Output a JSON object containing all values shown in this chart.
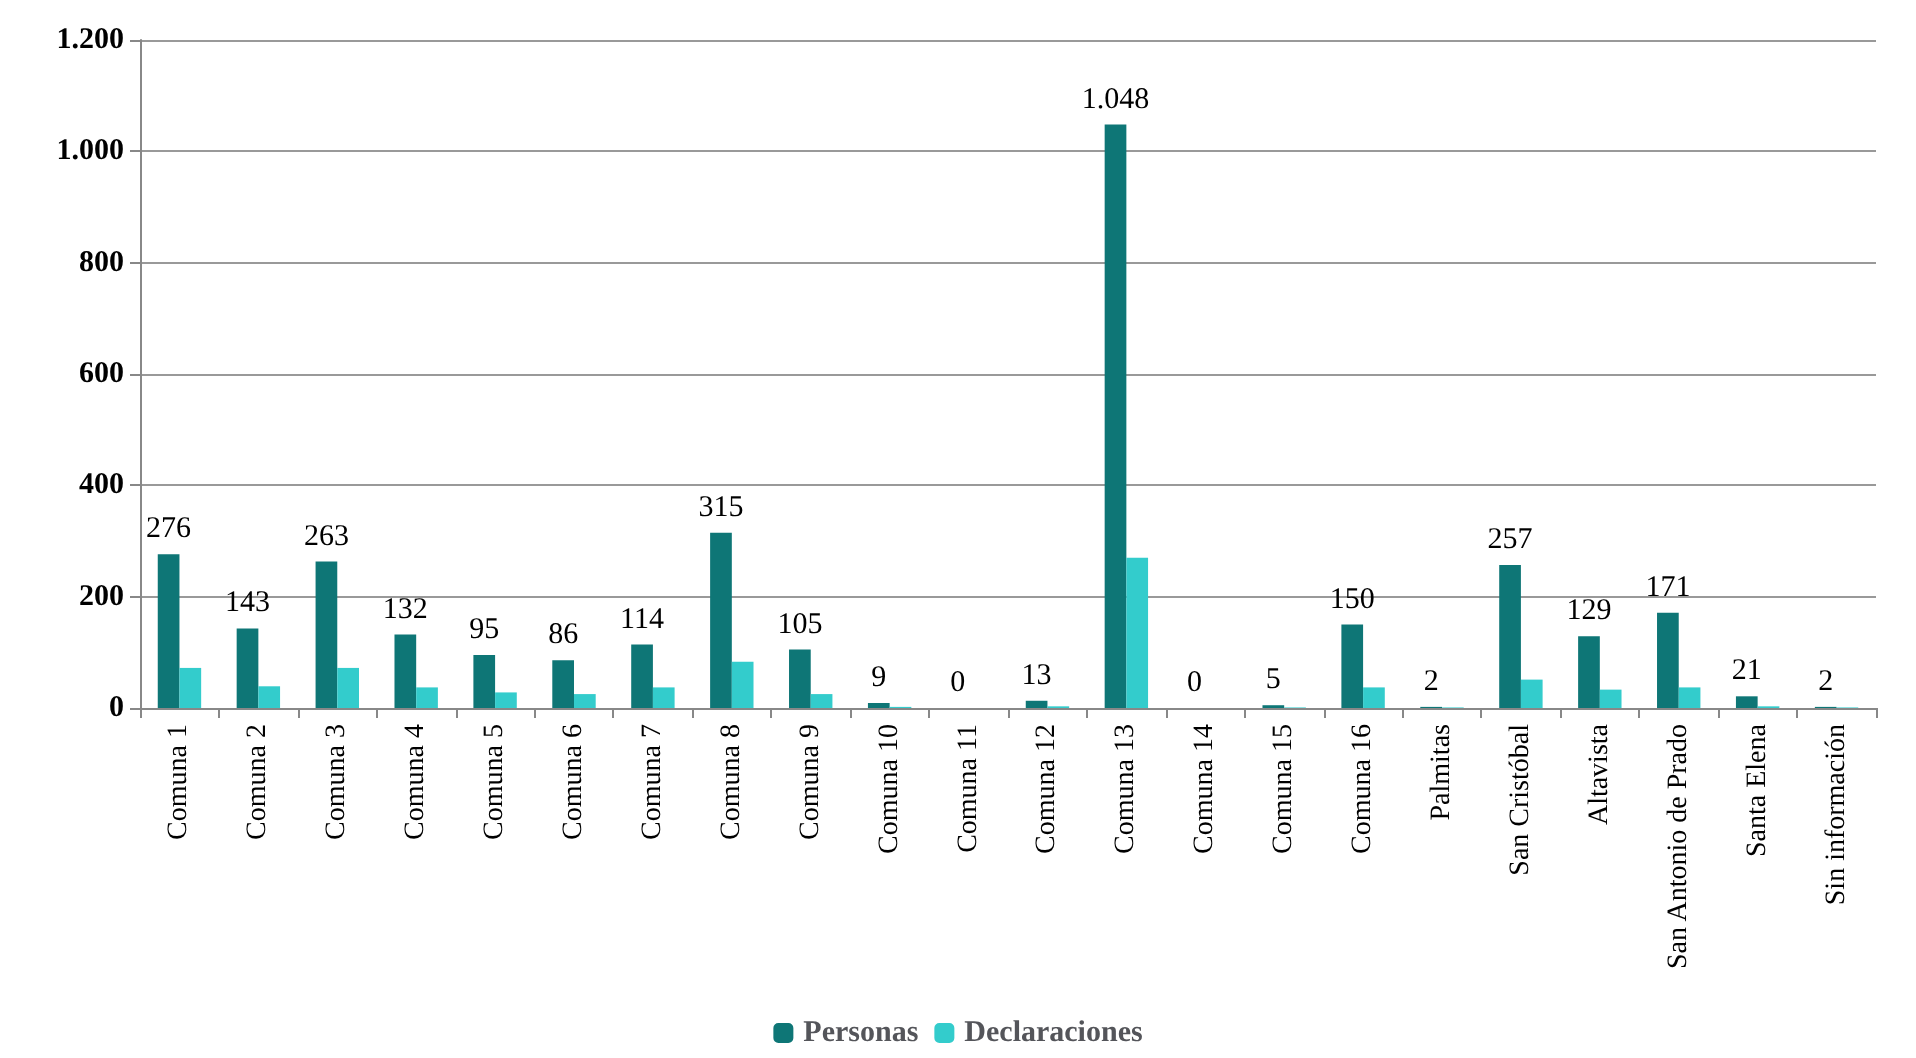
{
  "chart_data": {
    "type": "bar",
    "categories": [
      "Comuna 1",
      "Comuna 2",
      "Comuna 3",
      "Comuna 4",
      "Comuna 5",
      "Comuna 6",
      "Comuna 7",
      "Comuna 8",
      "Comuna 9",
      "Comuna 10",
      "Comuna 11",
      "Comuna 12",
      "Comuna 13",
      "Comuna 14",
      "Comuna 15",
      "Comuna 16",
      "Palmitas",
      "San Cristóbal",
      "Altavista",
      "San Antonio de Prado",
      "Santa Elena",
      "Sin información"
    ],
    "series": [
      {
        "name": "Personas",
        "color": "#0e7676",
        "values": [
          276,
          143,
          263,
          132,
          95,
          86,
          114,
          315,
          105,
          9,
          0,
          13,
          1048,
          0,
          5,
          150,
          2,
          257,
          129,
          171,
          21,
          2
        ],
        "value_labels": [
          "276",
          "143",
          "263",
          "132",
          "95",
          "86",
          "114",
          "315",
          "105",
          "9",
          "0",
          "13",
          "1.048",
          "0",
          "5",
          "150",
          "2",
          "257",
          "129",
          "171",
          "21",
          "2"
        ]
      },
      {
        "name": "Declaraciones",
        "color": "#33cccc",
        "values": [
          72,
          39,
          72,
          37,
          28,
          25,
          37,
          83,
          25,
          2,
          0,
          3,
          270,
          0,
          1,
          37,
          1,
          51,
          33,
          37,
          3,
          1
        ]
      }
    ],
    "ylim": [
      0,
      1200
    ],
    "yticks": [
      0,
      200,
      400,
      600,
      800,
      {
        "value": 1000,
        "label": "1.000"
      },
      {
        "value": 1200,
        "label": "1.200"
      }
    ],
    "grid": "y",
    "legend": "bottom"
  }
}
